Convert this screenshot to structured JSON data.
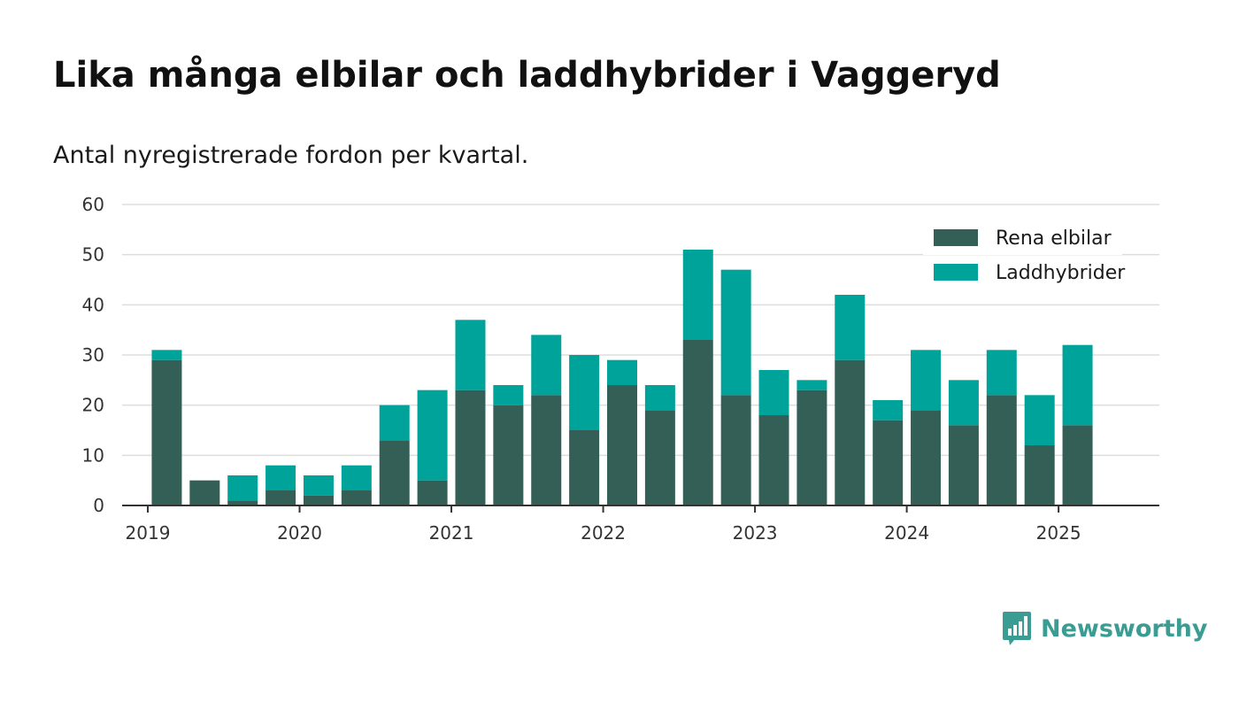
{
  "header": {
    "title": "Lika många elbilar och laddhybrider i Vaggeryd",
    "subtitle": "Antal nyregistrerade fordon per kvartal."
  },
  "brand": {
    "name": "Newsworthy",
    "icon": "bar-chart-speech-bubble-icon",
    "color": "#3a9c92"
  },
  "chart_data": {
    "type": "bar",
    "stacked": true,
    "x_ticks": [
      "2019",
      "2020",
      "2021",
      "2022",
      "2023",
      "2024",
      "2025"
    ],
    "ylim": [
      0,
      60
    ],
    "y_ticks": [
      0,
      10,
      20,
      30,
      40,
      50,
      60
    ],
    "grid": true,
    "legend_position": "top-right",
    "categories": [
      "2019 Q1",
      "2019 Q2",
      "2019 Q3",
      "2019 Q4",
      "2020 Q1",
      "2020 Q2",
      "2020 Q3",
      "2020 Q4",
      "2021 Q1",
      "2021 Q2",
      "2021 Q3",
      "2021 Q4",
      "2022 Q1",
      "2022 Q2",
      "2022 Q3",
      "2022 Q4",
      "2023 Q1",
      "2023 Q2",
      "2023 Q3",
      "2023 Q4",
      "2024 Q1",
      "2024 Q2",
      "2024 Q3",
      "2024 Q4",
      "2025 Q1",
      "2025 Q2"
    ],
    "series": [
      {
        "name": "Rena elbilar",
        "color": "#335f57",
        "values": [
          29,
          5,
          1,
          3,
          2,
          3,
          13,
          5,
          23,
          20,
          22,
          15,
          24,
          19,
          33,
          22,
          18,
          23,
          29,
          17,
          19,
          16,
          22,
          12,
          16,
          null
        ]
      },
      {
        "name": "Laddhybrider",
        "color": "#00a39a",
        "values": [
          2,
          0,
          5,
          5,
          4,
          5,
          7,
          18,
          14,
          4,
          12,
          15,
          5,
          5,
          18,
          25,
          9,
          2,
          13,
          4,
          12,
          9,
          9,
          10,
          16,
          null
        ]
      }
    ]
  }
}
